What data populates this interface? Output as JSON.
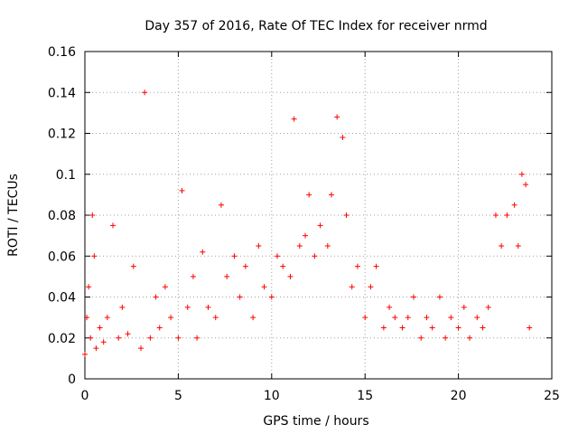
{
  "chart_data": {
    "type": "scatter",
    "title": "Day 357 of 2016, Rate Of TEC Index for receiver nrmd",
    "xlabel": "GPS time / hours",
    "ylabel": "ROTI / TECUs",
    "xlim": [
      0,
      25
    ],
    "ylim": [
      0,
      0.16
    ],
    "xticks": [
      "0",
      "5",
      "10",
      "15",
      "20",
      "25"
    ],
    "yticks": [
      "0",
      "0.02",
      "0.04",
      "0.06",
      "0.08",
      "0.1",
      "0.12",
      "0.14",
      "0.16"
    ],
    "grid": true,
    "marker": "plus",
    "color": "#ff0000",
    "series": [
      {
        "x": [
          0.0,
          0.1,
          0.2,
          0.3,
          0.4,
          0.5,
          0.6,
          0.8,
          1.0,
          1.2,
          1.5,
          1.8,
          2.0,
          2.3,
          2.6,
          3.0,
          3.2,
          3.5,
          3.8,
          4.0,
          4.3,
          4.6,
          5.0,
          5.2,
          5.5,
          5.8,
          6.0,
          6.3,
          6.6,
          7.0,
          7.3,
          7.6,
          8.0,
          8.3,
          8.6,
          9.0,
          9.3,
          9.6,
          10.0,
          10.3,
          10.6,
          11.0,
          11.2,
          11.5,
          11.8,
          12.0,
          12.3,
          12.6,
          13.0,
          13.2,
          13.5,
          13.8,
          14.0,
          14.3,
          14.6,
          15.0,
          15.3,
          15.6,
          16.0,
          16.3,
          16.6,
          17.0,
          17.3,
          17.6,
          18.0,
          18.3,
          18.6,
          19.0,
          19.3,
          19.6,
          20.0,
          20.3,
          20.6,
          21.0,
          21.3,
          21.6,
          22.0,
          22.3,
          22.6,
          23.0,
          23.2,
          23.4,
          23.6,
          23.8
        ],
        "y": [
          0.012,
          0.03,
          0.045,
          0.02,
          0.08,
          0.06,
          0.015,
          0.025,
          0.018,
          0.03,
          0.075,
          0.02,
          0.035,
          0.022,
          0.055,
          0.015,
          0.14,
          0.02,
          0.04,
          0.025,
          0.045,
          0.03,
          0.02,
          0.092,
          0.035,
          0.05,
          0.02,
          0.062,
          0.035,
          0.03,
          0.085,
          0.05,
          0.06,
          0.04,
          0.055,
          0.03,
          0.065,
          0.045,
          0.04,
          0.06,
          0.055,
          0.05,
          0.127,
          0.065,
          0.07,
          0.09,
          0.06,
          0.075,
          0.065,
          0.09,
          0.128,
          0.118,
          0.08,
          0.045,
          0.055,
          0.03,
          0.045,
          0.055,
          0.025,
          0.035,
          0.03,
          0.025,
          0.03,
          0.04,
          0.02,
          0.03,
          0.025,
          0.04,
          0.02,
          0.03,
          0.025,
          0.035,
          0.02,
          0.03,
          0.025,
          0.035,
          0.08,
          0.065,
          0.08,
          0.085,
          0.065,
          0.1,
          0.095,
          0.025
        ]
      }
    ]
  }
}
